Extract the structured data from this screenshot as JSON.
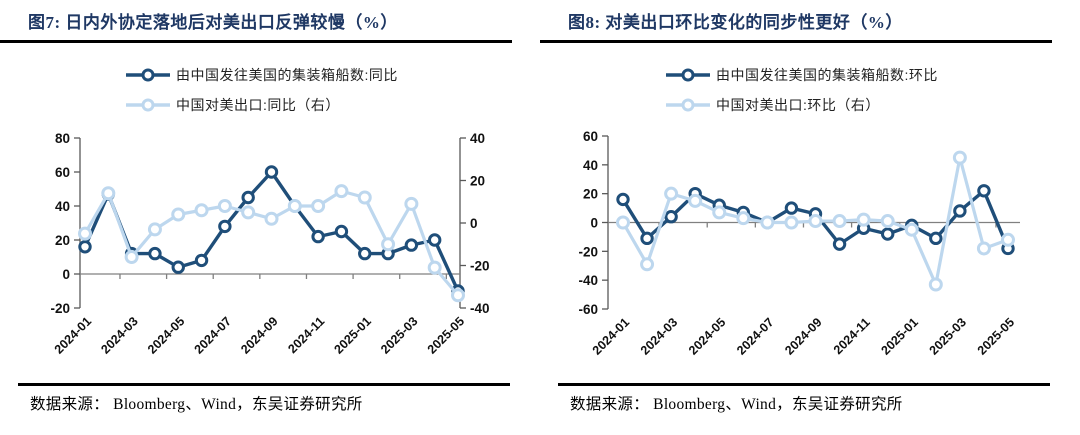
{
  "colors": {
    "title_navy": "#1F3864",
    "dark_line": "#1F4E79",
    "light_line": "#BDD7EE",
    "axis_line": "#595959",
    "zero_line": "#808080",
    "tick_text": "#111111",
    "legend_text": "#222222",
    "rule_black": "#000000"
  },
  "panels": [
    {
      "title": "图7:  日内外协定落地后对美出口反弹较慢（%）",
      "source_note": "数据来源： Bloomberg、Wind，东吴证券研究所",
      "chart_data": {
        "type": "line",
        "categories": [
          "2024-01",
          "2024-02",
          "2024-03",
          "2024-04",
          "2024-05",
          "2024-06",
          "2024-07",
          "2024-08",
          "2024-09",
          "2024-10",
          "2024-11",
          "2024-12",
          "2025-01",
          "2025-02",
          "2025-03",
          "2025-04",
          "2025-05"
        ],
        "x_tick_labels": [
          "2024-01",
          "2024-03",
          "2024-05",
          "2024-07",
          "2024-09",
          "2024-11",
          "2025-01",
          "2025-03",
          "2025-05"
        ],
        "left_axis": {
          "min": -20,
          "max": 80,
          "ticks": [
            80,
            60,
            40,
            20,
            0,
            -20
          ]
        },
        "right_axis": {
          "min": -40,
          "max": 40,
          "ticks": [
            40,
            20,
            0,
            -20,
            -40
          ]
        },
        "grid": false,
        "legend_position": "top",
        "series": [
          {
            "name": "由中国发往美国的集装箱船数:同比",
            "axis": "left",
            "color": "#1F4E79",
            "values": [
              16,
              47,
              12,
              12,
              4,
              8,
              28,
              45,
              60,
              40,
              22,
              25,
              12,
              12,
              17,
              20,
              -10
            ]
          },
          {
            "name": "中国对美出口:同比（右）",
            "axis": "right",
            "color": "#BDD7EE",
            "values": [
              -5,
              14,
              -16,
              -3,
              4,
              6,
              8,
              5,
              2,
              8,
              8,
              15,
              12,
              -10,
              9,
              -21,
              -34
            ]
          }
        ]
      }
    },
    {
      "title": "图8:  对美出口环比变化的同步性更好（%）",
      "source_note": "数据来源： Bloomberg、Wind，东吴证券研究所",
      "chart_data": {
        "type": "line",
        "categories": [
          "2024-01",
          "2024-02",
          "2024-03",
          "2024-04",
          "2024-05",
          "2024-06",
          "2024-07",
          "2024-08",
          "2024-09",
          "2024-10",
          "2024-11",
          "2024-12",
          "2025-01",
          "2025-02",
          "2025-03",
          "2025-04",
          "2025-05"
        ],
        "x_tick_labels": [
          "2024-01",
          "2024-03",
          "2024-05",
          "2024-07",
          "2024-09",
          "2024-11",
          "2025-01",
          "2025-03",
          "2025-05"
        ],
        "left_axis": {
          "min": -60,
          "max": 60,
          "ticks": [
            60,
            40,
            20,
            0,
            -20,
            -40,
            -60
          ]
        },
        "right_axis": null,
        "grid": false,
        "legend_position": "top",
        "series": [
          {
            "name": "由中国发往美国的集装箱船数:环比",
            "axis": "left",
            "color": "#1F4E79",
            "values": [
              16,
              -11,
              4,
              20,
              12,
              7,
              0,
              10,
              6,
              -15,
              -4,
              -8,
              -2,
              -11,
              8,
              22,
              -18
            ]
          },
          {
            "name": "中国对美出口:环比（右）",
            "axis": "left",
            "color": "#BDD7EE",
            "values": [
              0,
              -29,
              20,
              15,
              7,
              3,
              0,
              0,
              1,
              1,
              2,
              1,
              -5,
              -43,
              45,
              -18,
              -12
            ]
          }
        ]
      }
    }
  ]
}
